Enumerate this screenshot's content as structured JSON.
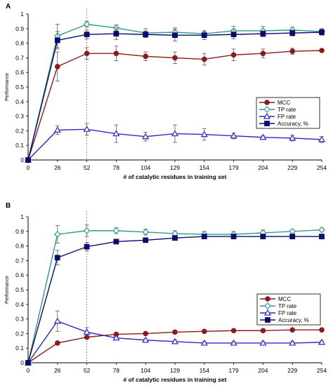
{
  "chart_data": [
    {
      "type": "line",
      "panel_label": "A",
      "x": [
        0,
        26,
        52,
        78,
        104,
        129,
        154,
        179,
        204,
        229,
        254
      ],
      "xlabel": "# of catalytic residues in training set",
      "ylabel": "Performance",
      "ylim": [
        0,
        1
      ],
      "yticks": [
        "0",
        "0.1",
        "0.2",
        "0.3",
        "0.4",
        "0.5",
        "0.6",
        "0.7",
        "0.8",
        "0.9",
        "1"
      ],
      "reference_line_x": 52,
      "legend_position": "right",
      "series": [
        {
          "name": "MCC",
          "color": "#8B1A1A",
          "marker": "circle",
          "values": [
            0,
            0.64,
            0.73,
            0.73,
            0.71,
            0.7,
            0.69,
            0.72,
            0.73,
            0.745,
            0.75
          ],
          "errors": [
            0,
            0.1,
            0.04,
            0.05,
            0.03,
            0.04,
            0.04,
            0.04,
            0.03,
            0.02,
            0
          ]
        },
        {
          "name": "TP rate",
          "color": "#2E9C8C",
          "marker": "diamond",
          "values": [
            0,
            0.85,
            0.93,
            0.905,
            0.87,
            0.875,
            0.865,
            0.885,
            0.885,
            0.89,
            0.88
          ],
          "errors": [
            0,
            0.08,
            0.02,
            0.02,
            0.03,
            0.03,
            0.02,
            0.03,
            0.03,
            0.02,
            0.02
          ]
        },
        {
          "name": "FP rate",
          "color": "#2A2AC8",
          "marker": "triangle",
          "values": [
            0,
            0.205,
            0.21,
            0.18,
            0.16,
            0.18,
            0.175,
            0.165,
            0.155,
            0.15,
            0.14
          ],
          "errors": [
            0,
            0.03,
            0.04,
            0.06,
            0.03,
            0.06,
            0.04,
            0.02,
            0.01,
            0.02,
            0.02
          ]
        },
        {
          "name": "Accuracy, %",
          "color": "#0A0A70",
          "marker": "square",
          "values": [
            0,
            0.82,
            0.86,
            0.865,
            0.86,
            0.855,
            0.855,
            0.86,
            0.865,
            0.87,
            0.875
          ],
          "errors": [
            0,
            0.06,
            0.03,
            0.04,
            0.02,
            0.04,
            0.03,
            0.03,
            0.02,
            0.02,
            0.02
          ]
        }
      ]
    },
    {
      "type": "line",
      "panel_label": "B",
      "x": [
        0,
        26,
        52,
        78,
        104,
        129,
        154,
        179,
        204,
        229,
        254
      ],
      "xlabel": "# of catalytic residues in training set",
      "ylabel": "Performance",
      "ylim": [
        0,
        1
      ],
      "yticks": [
        "0",
        "0.1",
        "0.2",
        "0.3",
        "0.4",
        "0.5",
        "0.6",
        "0.7",
        "0.8",
        "0.9",
        "1"
      ],
      "reference_line_x": 52,
      "legend_position": "right",
      "series": [
        {
          "name": "MCC",
          "color": "#8B1A1A",
          "marker": "circle",
          "values": [
            0,
            0.135,
            0.175,
            0.195,
            0.2,
            0.21,
            0.215,
            0.22,
            0.22,
            0.225,
            0.225
          ],
          "errors": [
            0,
            0,
            0,
            0,
            0,
            0,
            0,
            0,
            0,
            0,
            0
          ]
        },
        {
          "name": "TP rate",
          "color": "#2E9C8C",
          "marker": "diamond",
          "values": [
            0,
            0.88,
            0.905,
            0.905,
            0.895,
            0.885,
            0.88,
            0.88,
            0.89,
            0.9,
            0.91
          ],
          "errors": [
            0,
            0.06,
            0.04,
            0.02,
            0.02,
            0.02,
            0.02,
            0.02,
            0.02,
            0.01,
            0.01
          ]
        },
        {
          "name": "FP rate",
          "color": "#2A2AC8",
          "marker": "triangle",
          "values": [
            0,
            0.285,
            0.21,
            0.17,
            0.155,
            0.145,
            0.135,
            0.135,
            0.135,
            0.135,
            0.14
          ],
          "errors": [
            0,
            0.07,
            0.03,
            0.01,
            0.01,
            0.01,
            0.01,
            0.01,
            0.01,
            0.01,
            0.01
          ]
        },
        {
          "name": "Accuracy, %",
          "color": "#0A0A70",
          "marker": "square",
          "values": [
            0,
            0.72,
            0.795,
            0.83,
            0.84,
            0.855,
            0.865,
            0.865,
            0.865,
            0.865,
            0.865
          ],
          "errors": [
            0,
            0.05,
            0.03,
            0.01,
            0.01,
            0.01,
            0.01,
            0.01,
            0.01,
            0.01,
            0.01
          ]
        }
      ]
    }
  ]
}
